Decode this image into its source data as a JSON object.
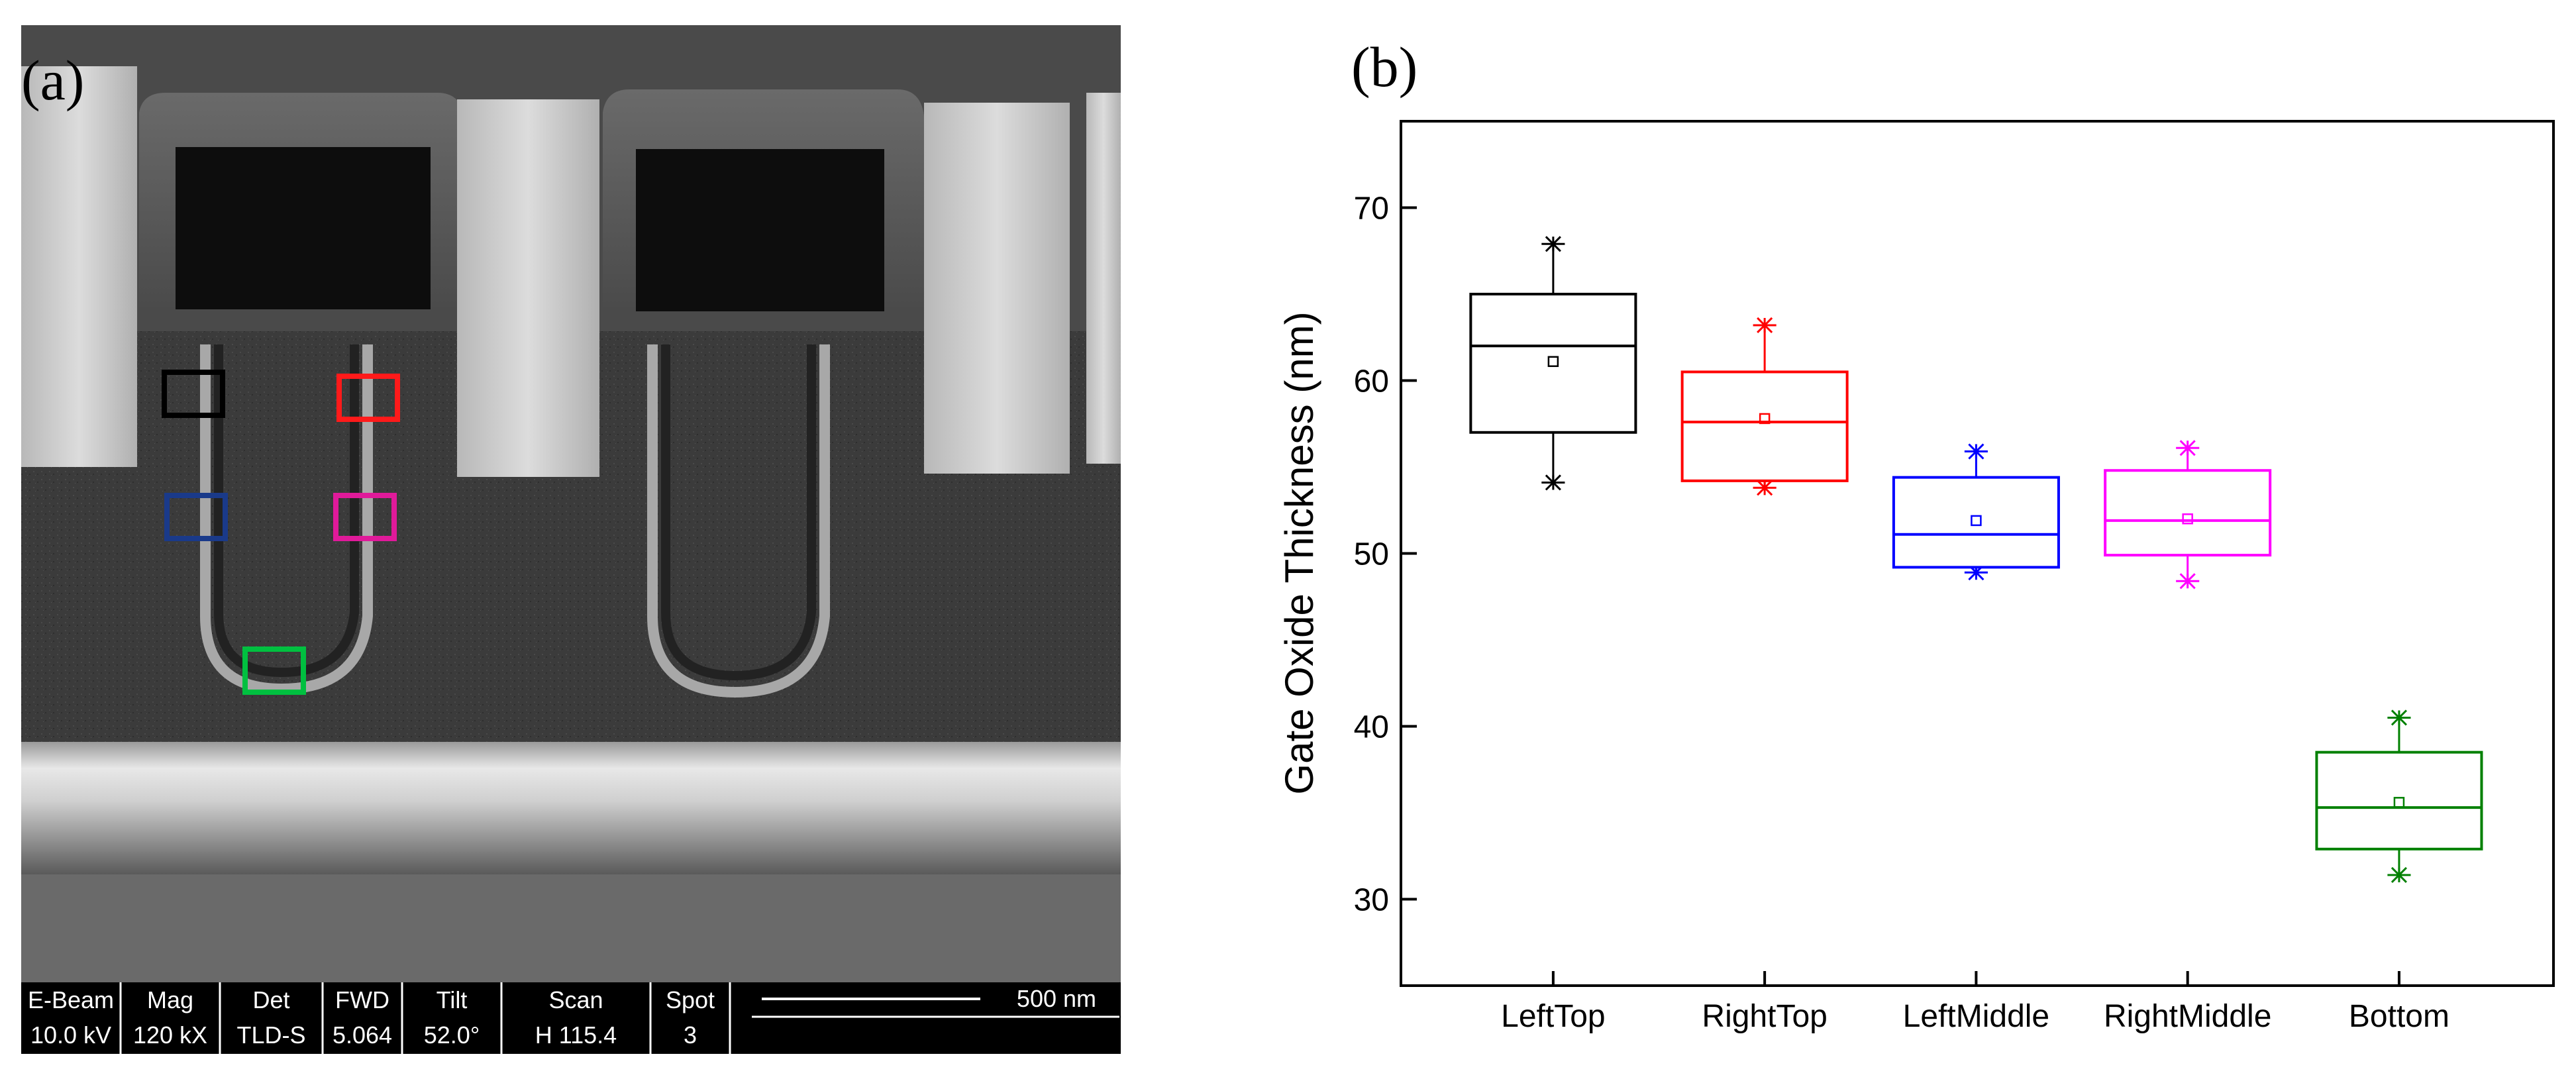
{
  "panel_a": {
    "label": "(a)",
    "info_bar": {
      "columns": [
        {
          "header": "E-Beam",
          "value": "10.0 kV"
        },
        {
          "header": "Mag",
          "value": "120 kX"
        },
        {
          "header": "Det",
          "value": "TLD-S"
        },
        {
          "header": "FWD",
          "value": "5.064"
        },
        {
          "header": "Tilt",
          "value": "52.0°"
        },
        {
          "header": "Scan",
          "value": "H 115.4"
        },
        {
          "header": "Spot",
          "value": "3"
        }
      ],
      "scale_bar": "500 nm"
    },
    "roi_boxes": [
      {
        "name": "LeftTop",
        "color": "#000000"
      },
      {
        "name": "RightTop",
        "color": "#ff1a1a"
      },
      {
        "name": "LeftMiddle",
        "color": "#1a3a8a"
      },
      {
        "name": "RightMiddle",
        "color": "#e01a9a"
      },
      {
        "name": "Bottom",
        "color": "#00c040"
      }
    ]
  },
  "chart_data": {
    "label": "(b)",
    "type": "box",
    "ylabel": "Gate Oxide Thickness (nm)",
    "ylim": [
      25,
      75
    ],
    "yticks": [
      30,
      40,
      50,
      60,
      70
    ],
    "categories": [
      "LeftTop",
      "RightTop",
      "LeftMiddle",
      "RightMiddle",
      "Bottom"
    ],
    "boxes": [
      {
        "category": "LeftTop",
        "color": "#000000",
        "min": 54.1,
        "q1": 57.0,
        "median": 62.0,
        "q3": 65.0,
        "max": 67.9,
        "mean": 61.1
      },
      {
        "category": "RightTop",
        "color": "#ff0000",
        "min": 53.8,
        "q1": 54.2,
        "median": 57.6,
        "q3": 60.5,
        "max": 63.2,
        "mean": 57.8
      },
      {
        "category": "LeftMiddle",
        "color": "#0000ff",
        "min": 48.9,
        "q1": 49.2,
        "median": 51.1,
        "q3": 54.4,
        "max": 55.9,
        "mean": 51.9
      },
      {
        "category": "RightMiddle",
        "color": "#ff00ff",
        "min": 48.4,
        "q1": 49.9,
        "median": 51.9,
        "q3": 54.8,
        "max": 56.1,
        "mean": 52.0
      },
      {
        "category": "Bottom",
        "color": "#008000",
        "min": 31.4,
        "q1": 32.9,
        "median": 35.3,
        "q3": 38.5,
        "max": 40.5,
        "mean": 35.6
      }
    ]
  }
}
